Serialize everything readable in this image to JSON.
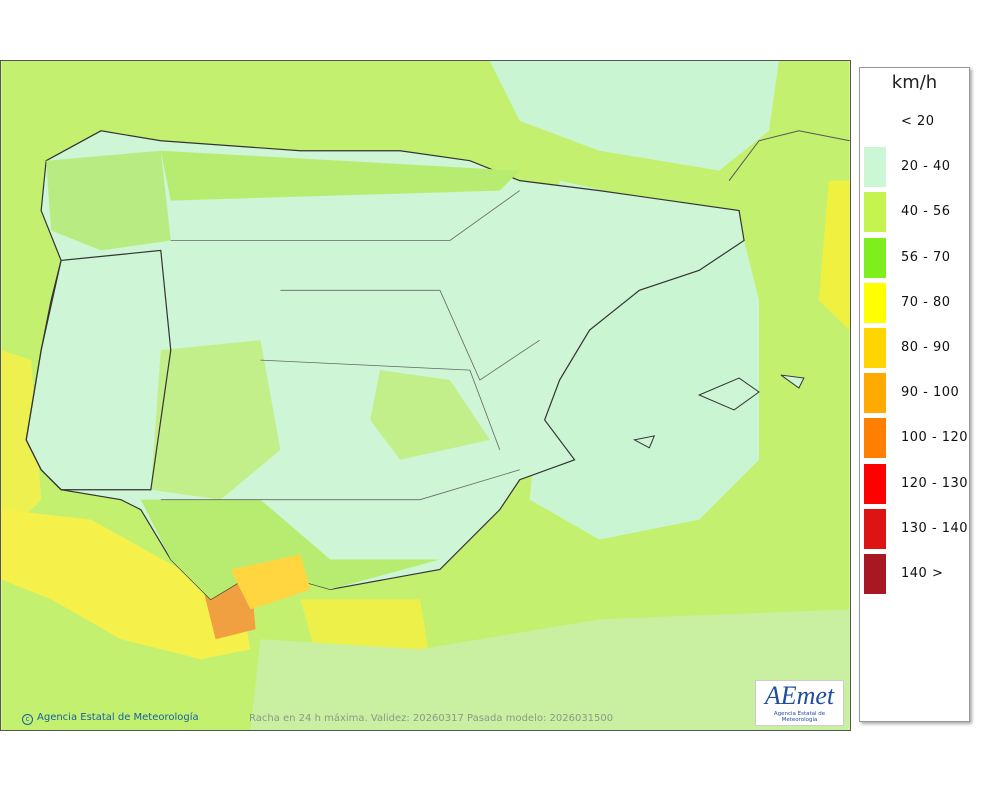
{
  "map": {
    "legend": {
      "unit": "km/h",
      "items": [
        {
          "label": "< 20",
          "color": "#ffffff"
        },
        {
          "label": "20 - 40",
          "color": "#ccf7d4"
        },
        {
          "label": "40 - 56",
          "color": "#c6f44e"
        },
        {
          "label": "56 - 70",
          "color": "#7eee1c"
        },
        {
          "label": "70 - 80",
          "color": "#ffff00"
        },
        {
          "label": "80 - 90",
          "color": "#ffd500"
        },
        {
          "label": "90 - 100",
          "color": "#ffaa00"
        },
        {
          "label": "100 - 120",
          "color": "#ff8000"
        },
        {
          "label": "120 - 130",
          "color": "#ff0000"
        },
        {
          "label": "130 - 140",
          "color": "#dd1414"
        },
        {
          "label": "140 >",
          "color": "#a81822"
        }
      ]
    },
    "footer": {
      "credit": "Agencia Estatal de Meteorología",
      "caption": "Racha en 24 h máxima. Validez: 20260317 Pasada modelo: 2026031500"
    },
    "logo": {
      "name": "AEmet",
      "subtitle": "Agencia Estatal de Meteorología"
    }
  }
}
